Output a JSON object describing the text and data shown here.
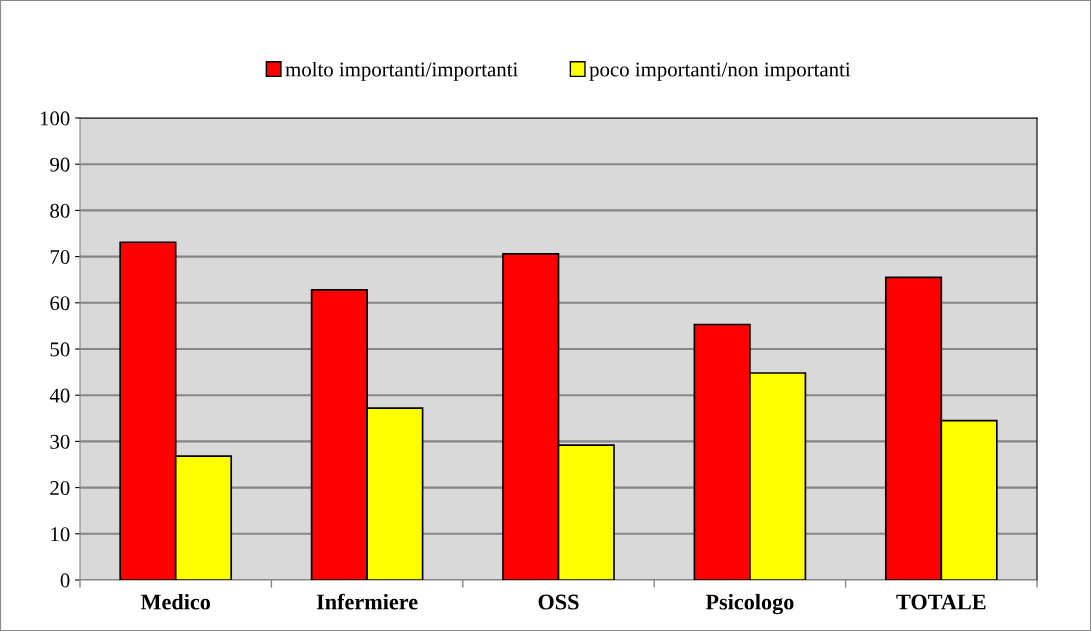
{
  "chart_data": {
    "type": "bar",
    "categories": [
      "Medico",
      "Infermiere",
      "OSS",
      "Psicologo",
      "TOTALE"
    ],
    "series": [
      {
        "name": "molto importanti/importanti",
        "color": "#ff0000",
        "values": [
          73.1,
          62.8,
          70.6,
          55.3,
          65.5
        ]
      },
      {
        "name": "poco importanti/non importanti",
        "color": "#ffff00",
        "values": [
          26.8,
          37.2,
          29.2,
          44.8,
          34.5
        ]
      }
    ],
    "ylim": [
      0,
      100
    ],
    "yticks": [
      0,
      10,
      20,
      30,
      40,
      50,
      60,
      70,
      80,
      90,
      100
    ],
    "grid": "y",
    "legend": "top"
  }
}
